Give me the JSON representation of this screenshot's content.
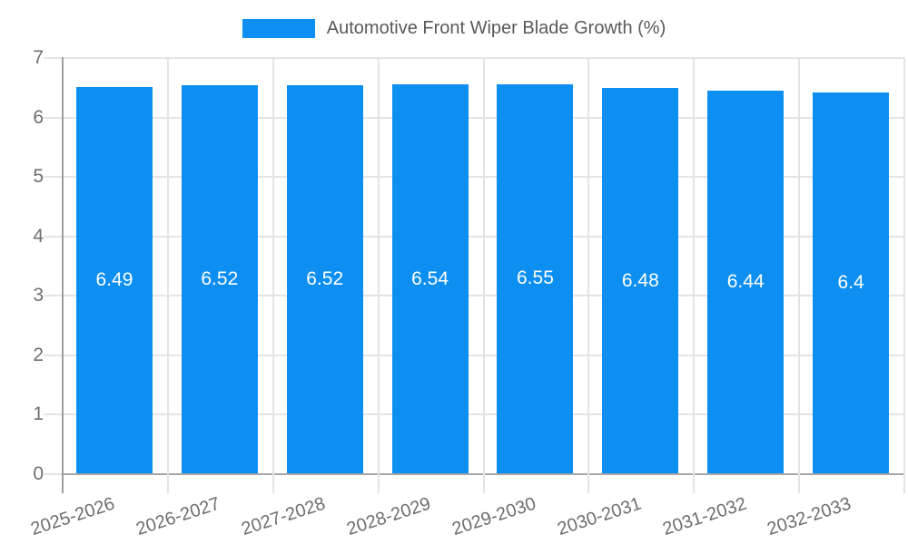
{
  "chart_data": {
    "type": "bar",
    "title": "Automotive Front Wiper Blade Growth (%)",
    "legend": {
      "label": "Automotive Front Wiper Blade Growth (%)",
      "position": "top"
    },
    "categories": [
      "2025-2026",
      "2026-2027",
      "2027-2028",
      "2028-2029",
      "2029-2030",
      "2030-2031",
      "2031-2032",
      "2032-2033"
    ],
    "series": [
      {
        "name": "Automotive Front Wiper Blade Growth (%)",
        "values": [
          6.49,
          6.52,
          6.52,
          6.54,
          6.55,
          6.48,
          6.44,
          6.4
        ]
      }
    ],
    "value_labels": [
      "6.49",
      "6.52",
      "6.52",
      "6.54",
      "6.55",
      "6.48",
      "6.44",
      "6.4"
    ],
    "xlabel": "",
    "ylabel": "",
    "ylim": [
      0,
      7
    ],
    "y_ticks": [
      0,
      1,
      2,
      3,
      4,
      5,
      6,
      7
    ],
    "grid": true,
    "colors": {
      "bar": "#0d8ff2",
      "value_label": "#ffffff",
      "axis_text": "#6e6e6e",
      "legend_text": "#595959",
      "gridline": "#e4e4e4",
      "axis_line": "#9e9e9e",
      "zero_line": "#a6a6a6",
      "background": "#ffffff"
    }
  }
}
